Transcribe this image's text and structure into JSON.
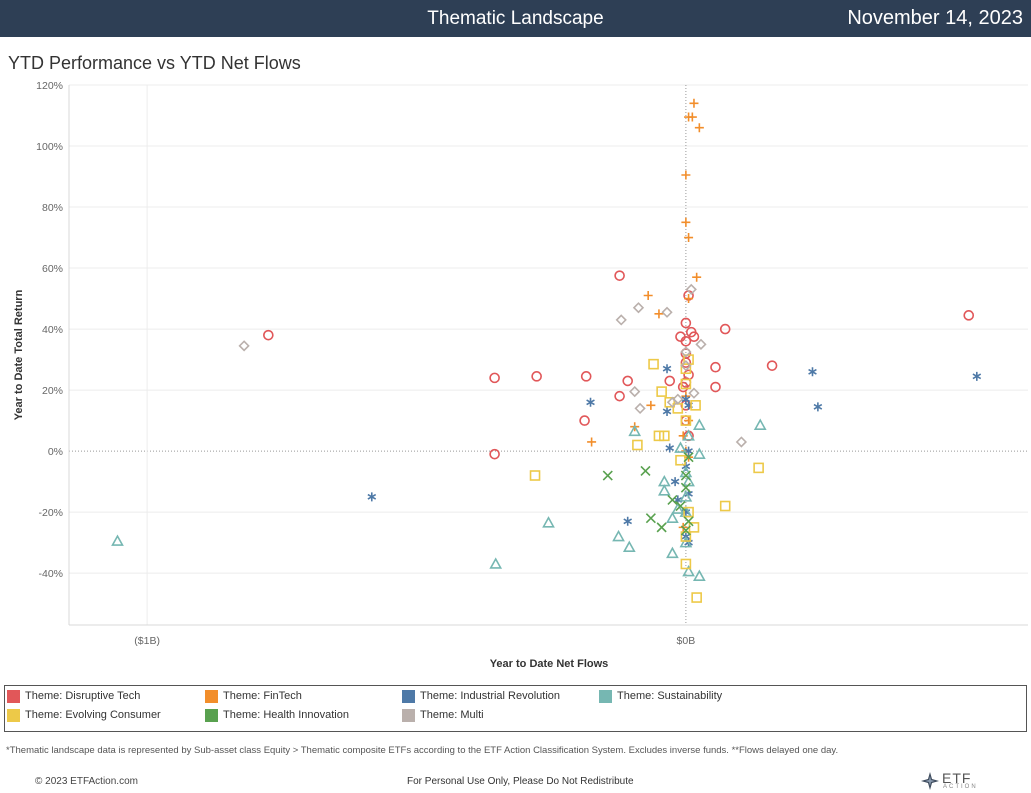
{
  "header": {
    "title": "Thematic Landscape",
    "date": "November 14, 2023"
  },
  "subtitle": "YTD Performance vs YTD Net Flows",
  "legend": [
    {
      "label": "Theme: Disruptive Tech",
      "color": "#e15759"
    },
    {
      "label": "Theme: FinTech",
      "color": "#f28e2b"
    },
    {
      "label": "Theme: Industrial Revolution",
      "color": "#4e79a7"
    },
    {
      "label": "Theme: Sustainability",
      "color": "#76b7b2"
    },
    {
      "label": "Theme: Evolving Consumer",
      "color": "#edc948"
    },
    {
      "label": "Theme: Health Innovation",
      "color": "#59a14f"
    },
    {
      "label": "Theme: Multi",
      "color": "#bab0ac"
    }
  ],
  "footnote": "*Thematic landscape data is represented by Sub-asset class Equity > Thematic composite ETFs according to the ETF Action Classification System. Excludes inverse funds. **Flows delayed one day.",
  "copyright": "© 2023 ETFAction.com",
  "personal_use": "For Personal Use Only, Please Do Not Redistribute",
  "logo": {
    "text": "ETF",
    "sub": "ACTION"
  },
  "chart_data": {
    "type": "scatter",
    "xlabel": "Year to Date Net Flows",
    "ylabel": "Year to Date Total Return",
    "x_unit": "$B",
    "xlim": [
      -1.145,
      0.635
    ],
    "ylim": [
      -57,
      120
    ],
    "x_ticks": [
      {
        "value": -1.0,
        "label": "($1B)"
      },
      {
        "value": 0.0,
        "label": "$0B"
      }
    ],
    "y_ticks": [
      {
        "value": 120,
        "label": "120%"
      },
      {
        "value": 100,
        "label": "100%"
      },
      {
        "value": 80,
        "label": "80%"
      },
      {
        "value": 60,
        "label": "60%"
      },
      {
        "value": 40,
        "label": "40%"
      },
      {
        "value": 20,
        "label": "20%"
      },
      {
        "value": 0,
        "label": "0%"
      },
      {
        "value": -20,
        "label": "-20%"
      },
      {
        "value": -40,
        "label": "-40%"
      }
    ],
    "grid": true,
    "series": [
      {
        "name": "Theme: Disruptive Tech",
        "marker": "circle",
        "color": "#e15759",
        "points": [
          [
            -0.775,
            38
          ],
          [
            -0.355,
            24
          ],
          [
            -0.277,
            24.5
          ],
          [
            -0.185,
            24.5
          ],
          [
            -0.355,
            -1
          ],
          [
            -0.123,
            57.5
          ],
          [
            -0.108,
            23
          ],
          [
            -0.123,
            18
          ],
          [
            -0.188,
            10
          ],
          [
            -0.03,
            23
          ],
          [
            -0.01,
            37.5
          ],
          [
            0.005,
            51
          ],
          [
            0.0,
            42
          ],
          [
            0.01,
            39
          ],
          [
            0.015,
            37.5
          ],
          [
            0.0,
            36
          ],
          [
            0.0,
            32
          ],
          [
            0.0,
            29
          ],
          [
            0.005,
            25
          ],
          [
            -0.005,
            21
          ],
          [
            0.0,
            22.5
          ],
          [
            0.055,
            27.5
          ],
          [
            0.055,
            21
          ],
          [
            0.073,
            40
          ],
          [
            0.16,
            28
          ],
          [
            0.525,
            44.5
          ],
          [
            0.0,
            15
          ],
          [
            0.0,
            10
          ],
          [
            0.005,
            5
          ]
        ]
      },
      {
        "name": "Theme: FinTech",
        "marker": "plus",
        "color": "#f28e2b",
        "points": [
          [
            0.015,
            114
          ],
          [
            0.005,
            109.5
          ],
          [
            0.012,
            109.5
          ],
          [
            0.025,
            106
          ],
          [
            0.0,
            90.5
          ],
          [
            0.0,
            75
          ],
          [
            0.005,
            70
          ],
          [
            0.02,
            57
          ],
          [
            0.005,
            50
          ],
          [
            -0.07,
            51
          ],
          [
            -0.05,
            45
          ],
          [
            -0.175,
            3
          ],
          [
            -0.095,
            8
          ],
          [
            -0.065,
            15
          ],
          [
            0.0,
            18
          ],
          [
            0.005,
            10
          ],
          [
            -0.005,
            5
          ],
          [
            0.0,
            0
          ],
          [
            0.005,
            -2
          ],
          [
            -0.005,
            -25
          ]
        ]
      },
      {
        "name": "Theme: Industrial Revolution",
        "marker": "asterisk",
        "color": "#4e79a7",
        "points": [
          [
            -0.583,
            -15
          ],
          [
            0.54,
            24.5
          ],
          [
            0.235,
            26
          ],
          [
            0.245,
            14.5
          ],
          [
            -0.177,
            16
          ],
          [
            -0.108,
            -23
          ],
          [
            -0.035,
            27
          ],
          [
            -0.035,
            13
          ],
          [
            -0.03,
            1
          ],
          [
            -0.02,
            -10
          ],
          [
            -0.015,
            -16
          ],
          [
            0.0,
            17
          ],
          [
            0.005,
            15
          ],
          [
            0.0,
            -5
          ],
          [
            0.005,
            -14
          ],
          [
            0.0,
            -20
          ],
          [
            0.0,
            -28
          ],
          [
            0.005,
            -30
          ],
          [
            0.005,
            0
          ]
        ]
      },
      {
        "name": "Theme: Sustainability",
        "marker": "triangle",
        "color": "#76b7b2",
        "points": [
          [
            -1.055,
            -29.5
          ],
          [
            -0.353,
            -37
          ],
          [
            -0.255,
            -23.5
          ],
          [
            -0.125,
            -28
          ],
          [
            -0.105,
            -31.5
          ],
          [
            -0.095,
            6.5
          ],
          [
            -0.04,
            -13
          ],
          [
            -0.04,
            -10
          ],
          [
            -0.025,
            -22
          ],
          [
            -0.025,
            -33.5
          ],
          [
            -0.015,
            -19
          ],
          [
            0.005,
            -39.5
          ],
          [
            0.025,
            -41
          ],
          [
            0.025,
            -1
          ],
          [
            0.025,
            8.5
          ],
          [
            0.138,
            8.5
          ],
          [
            0.0,
            -30
          ],
          [
            0.0,
            -20
          ],
          [
            0.0,
            -15
          ],
          [
            0.005,
            -10
          ],
          [
            0.005,
            5
          ],
          [
            -0.01,
            1
          ],
          [
            0.0,
            -7
          ]
        ]
      },
      {
        "name": "Theme: Evolving Consumer",
        "marker": "square",
        "color": "#edc948",
        "points": [
          [
            -0.28,
            -8
          ],
          [
            -0.09,
            2
          ],
          [
            -0.06,
            28.5
          ],
          [
            -0.045,
            19.5
          ],
          [
            -0.05,
            5
          ],
          [
            -0.04,
            5
          ],
          [
            -0.03,
            16
          ],
          [
            -0.015,
            14
          ],
          [
            0.0,
            27
          ],
          [
            0.005,
            30
          ],
          [
            0.0,
            22
          ],
          [
            0.018,
            15
          ],
          [
            0.0,
            10
          ],
          [
            0.005,
            -20
          ],
          [
            0.0,
            -28
          ],
          [
            0.015,
            -25
          ],
          [
            0.0,
            -37
          ],
          [
            0.02,
            -48
          ],
          [
            0.135,
            -5.5
          ],
          [
            0.073,
            -18
          ],
          [
            -0.01,
            -3
          ]
        ]
      },
      {
        "name": "Theme: Health Innovation",
        "marker": "x",
        "color": "#59a14f",
        "points": [
          [
            -0.145,
            -8
          ],
          [
            -0.075,
            -6.5
          ],
          [
            -0.065,
            -22
          ],
          [
            -0.045,
            -25
          ],
          [
            -0.025,
            -16
          ],
          [
            -0.01,
            -18
          ],
          [
            0.0,
            -8
          ],
          [
            0.005,
            -23
          ],
          [
            0.0,
            -26
          ],
          [
            0.0,
            -12
          ],
          [
            0.005,
            -2
          ]
        ]
      },
      {
        "name": "Theme: Multi",
        "marker": "diamond",
        "color": "#bab0ac",
        "points": [
          [
            -0.82,
            34.5
          ],
          [
            -0.12,
            43
          ],
          [
            -0.088,
            47
          ],
          [
            -0.035,
            45.5
          ],
          [
            0.01,
            53
          ],
          [
            0.028,
            35
          ],
          [
            0.0,
            32.5
          ],
          [
            0.0,
            28
          ],
          [
            -0.095,
            19.5
          ],
          [
            -0.085,
            14
          ],
          [
            -0.025,
            16
          ],
          [
            -0.015,
            17
          ],
          [
            0.015,
            19
          ],
          [
            0.103,
            3
          ]
        ]
      }
    ]
  }
}
